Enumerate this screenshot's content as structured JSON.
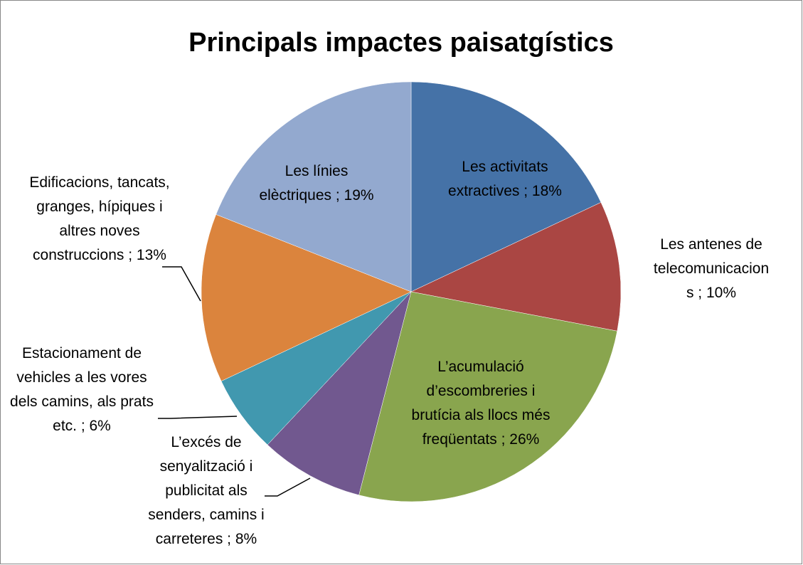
{
  "chart_data": {
    "type": "pie",
    "title": "Principals impactes paisatgístics",
    "categories": [
      "Les activitats extractives ; 18%",
      "Les antenes de telecomunicacions ; 10%",
      "L’acumulació d’escombreries i brutícia als llocs més freqüentats ; 26%",
      "L’excés de senyalització i publicitat als senders, camins i carreteres ; 8%",
      "Estacionament de vehicles a les vores dels camins, als prats etc. ; 6%",
      "Edificacions, tancats, granges, hípiques i altres noves construccions ; 13%",
      "Les línies elèctriques ; 19%"
    ],
    "values": [
      18,
      10,
      26,
      8,
      6,
      13,
      19
    ],
    "colors": [
      "#4572a7",
      "#aa4643",
      "#89a54e",
      "#71588f",
      "#4198af",
      "#db843d",
      "#93a9cf"
    ]
  }
}
